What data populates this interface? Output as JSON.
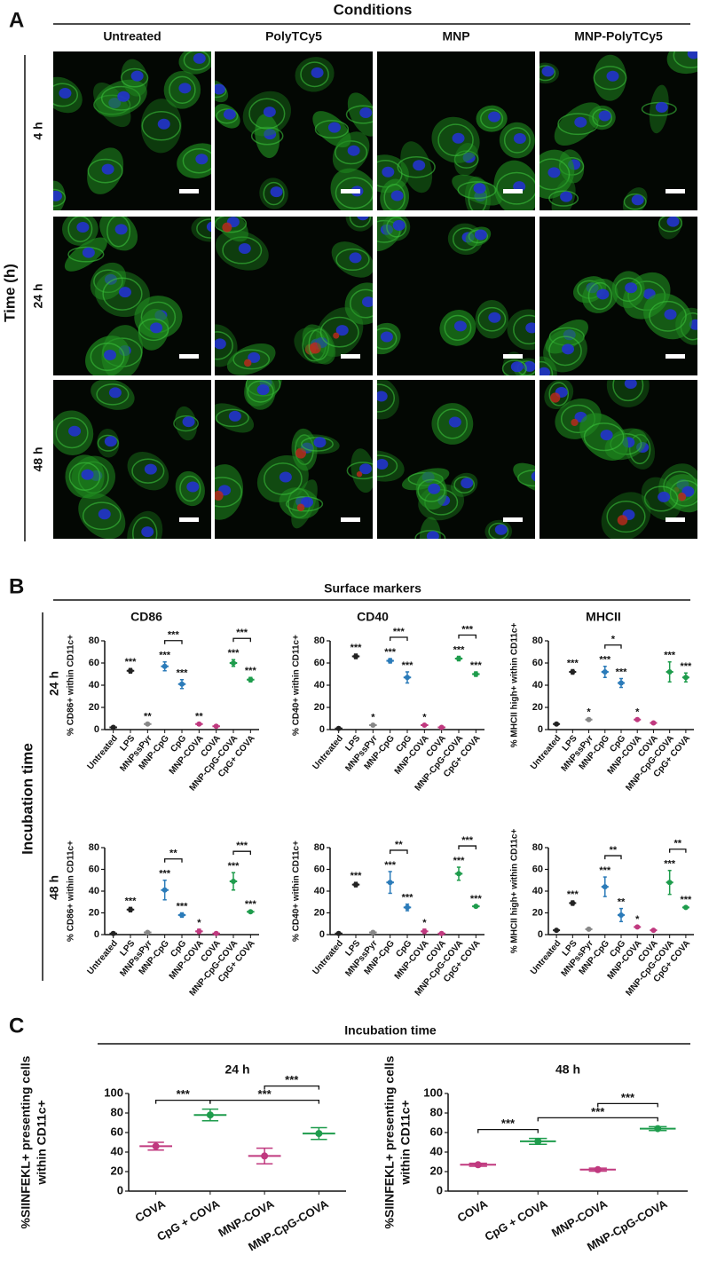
{
  "panel_a": {
    "label": "A",
    "title": "Conditions",
    "columns": [
      "Untreated",
      "PolyTCy5",
      "MNP",
      "MNP-PolyTCy5"
    ],
    "rows": [
      "4 h",
      "24 h",
      "48 h"
    ],
    "axis_label": "Time (h)"
  },
  "panel_b": {
    "label": "B",
    "title": "Surface markers",
    "row_axis_label": "Incubation time",
    "markers": [
      "CD86",
      "CD40",
      "MHCII"
    ],
    "rows": [
      "24 h",
      "48 h"
    ]
  },
  "panel_c": {
    "label": "C",
    "title": "Incubation time"
  },
  "chart_data": [
    {
      "type": "dot",
      "ylabel": [
        "% CD86+ within CD11c+"
      ],
      "categories": [
        "Untreated",
        "LPS",
        "MNPssPyr",
        "MNP-CpG",
        "CpG",
        "MNP-COVA",
        "COVA",
        "MNP-CpG-COVA",
        "CpG+ COVA"
      ],
      "values": [
        2,
        53,
        5,
        57,
        41,
        5,
        3,
        60,
        45
      ],
      "errors": [
        1,
        2,
        1,
        4,
        4,
        1,
        1,
        3,
        2
      ],
      "colors": [
        "#222222",
        "#222222",
        "#888888",
        "#2b7bb9",
        "#2b7bb9",
        "#c0397f",
        "#c0397f",
        "#1e9c4c",
        "#1e9c4c"
      ],
      "stars": [
        null,
        "***",
        "**",
        "***",
        "***",
        "**",
        null,
        "***",
        "***"
      ],
      "comparisons": [
        {
          "between": [
            "MNP-CpG",
            "CpG"
          ],
          "label": "***"
        },
        {
          "between": [
            "MNP-CpG-COVA",
            "CpG+ COVA"
          ],
          "label": "***"
        }
      ],
      "ylim": [
        0,
        80
      ],
      "yticks": [
        0,
        20,
        40,
        60,
        80
      ]
    },
    {
      "type": "dot",
      "ylabel": [
        "% CD40+ within CD11c+"
      ],
      "categories": [
        "Untreated",
        "LPS",
        "MNPssPyr",
        "MNP-CpG",
        "CpG",
        "MNP-COVA",
        "COVA",
        "MNP-CpG-COVA",
        "CpG+ COVA"
      ],
      "values": [
        1,
        66,
        4,
        62,
        47,
        4,
        2,
        64,
        50
      ],
      "errors": [
        1,
        2,
        1,
        2,
        5,
        1,
        1,
        2,
        2
      ],
      "colors": [
        "#222222",
        "#222222",
        "#888888",
        "#2b7bb9",
        "#2b7bb9",
        "#c0397f",
        "#c0397f",
        "#1e9c4c",
        "#1e9c4c"
      ],
      "stars": [
        null,
        "***",
        "*",
        "***",
        "***",
        "*",
        null,
        "***",
        "***"
      ],
      "comparisons": [
        {
          "between": [
            "MNP-CpG",
            "CpG"
          ],
          "label": "***"
        },
        {
          "between": [
            "MNP-CpG-COVA",
            "CpG+ COVA"
          ],
          "label": "***"
        }
      ],
      "ylim": [
        0,
        80
      ],
      "yticks": [
        0,
        20,
        40,
        60,
        80
      ]
    },
    {
      "type": "dot",
      "ylabel": [
        "% MHCII high+ within CD11c+"
      ],
      "categories": [
        "Untreated",
        "LPS",
        "MNPssPyr",
        "MNP-CpG",
        "CpG",
        "MNP-COVA",
        "COVA",
        "MNP-CpG-COVA",
        "CpG+ COVA"
      ],
      "values": [
        5,
        52,
        9,
        52,
        42,
        9,
        6,
        52,
        47
      ],
      "errors": [
        1,
        2,
        1,
        5,
        4,
        1,
        1,
        9,
        4
      ],
      "colors": [
        "#222222",
        "#222222",
        "#888888",
        "#2b7bb9",
        "#2b7bb9",
        "#c0397f",
        "#c0397f",
        "#1e9c4c",
        "#1e9c4c"
      ],
      "stars": [
        null,
        "***",
        "*",
        "***",
        "***",
        "*",
        null,
        "***",
        "***"
      ],
      "comparisons": [
        {
          "between": [
            "MNP-CpG",
            "CpG"
          ],
          "label": "*"
        }
      ],
      "ylim": [
        0,
        80
      ],
      "yticks": [
        0,
        20,
        40,
        60,
        80
      ]
    },
    {
      "type": "dot",
      "ylabel": [
        "% CD86+ within CD11c+"
      ],
      "categories": [
        "Untreated",
        "LPS",
        "MNPssPyr",
        "MNP-CpG",
        "CpG",
        "MNP-COVA",
        "COVA",
        "MNP-CpG-COVA",
        "CpG+ COVA"
      ],
      "values": [
        1,
        23,
        2,
        41,
        18,
        3,
        1,
        49,
        21
      ],
      "errors": [
        1,
        2,
        1,
        9,
        2,
        2,
        1,
        8,
        1
      ],
      "colors": [
        "#222222",
        "#222222",
        "#888888",
        "#2b7bb9",
        "#2b7bb9",
        "#c0397f",
        "#c0397f",
        "#1e9c4c",
        "#1e9c4c"
      ],
      "stars": [
        null,
        "***",
        null,
        "***",
        "***",
        "*",
        null,
        "***",
        "***"
      ],
      "comparisons": [
        {
          "between": [
            "MNP-CpG",
            "CpG"
          ],
          "label": "**"
        },
        {
          "between": [
            "MNP-CpG-COVA",
            "CpG+ COVA"
          ],
          "label": "***"
        }
      ],
      "ylim": [
        0,
        80
      ],
      "yticks": [
        0,
        20,
        40,
        60,
        80
      ]
    },
    {
      "type": "dot",
      "ylabel": [
        "% CD40+ within CD11c+"
      ],
      "categories": [
        "Untreated",
        "LPS",
        "MNPssPyr",
        "MNP-CpG",
        "CpG",
        "MNP-COVA",
        "COVA",
        "MNP-CpG-COVA",
        "CpG+ COVA"
      ],
      "values": [
        1,
        46,
        2,
        48,
        25,
        3,
        1,
        56,
        26
      ],
      "errors": [
        1,
        2,
        1,
        10,
        3,
        2,
        1,
        6,
        1
      ],
      "colors": [
        "#222222",
        "#222222",
        "#888888",
        "#2b7bb9",
        "#2b7bb9",
        "#c0397f",
        "#c0397f",
        "#1e9c4c",
        "#1e9c4c"
      ],
      "stars": [
        null,
        "***",
        null,
        "***",
        "***",
        "*",
        null,
        "***",
        "***"
      ],
      "comparisons": [
        {
          "between": [
            "MNP-CpG",
            "CpG"
          ],
          "label": "**"
        },
        {
          "between": [
            "MNP-CpG-COVA",
            "CpG+ COVA"
          ],
          "label": "***"
        }
      ],
      "ylim": [
        0,
        80
      ],
      "yticks": [
        0,
        20,
        40,
        60,
        80
      ]
    },
    {
      "type": "dot",
      "ylabel": [
        "% MHCII high+ within CD11c+"
      ],
      "categories": [
        "Untreated",
        "LPS",
        "MNPssPyr",
        "MNP-CpG",
        "CpG",
        "MNP-COVA",
        "COVA",
        "MNP-CpG-COVA",
        "CpG+ COVA"
      ],
      "values": [
        4,
        29,
        5,
        44,
        18,
        7,
        4,
        48,
        25
      ],
      "errors": [
        1,
        2,
        1,
        9,
        6,
        1,
        1,
        11,
        1
      ],
      "colors": [
        "#222222",
        "#222222",
        "#888888",
        "#2b7bb9",
        "#2b7bb9",
        "#c0397f",
        "#c0397f",
        "#1e9c4c",
        "#1e9c4c"
      ],
      "stars": [
        null,
        "***",
        null,
        "***",
        "**",
        "*",
        null,
        "***",
        "***"
      ],
      "comparisons": [
        {
          "between": [
            "MNP-CpG",
            "CpG"
          ],
          "label": "**"
        },
        {
          "between": [
            "MNP-CpG-COVA",
            "CpG+ COVA"
          ],
          "label": "**"
        }
      ],
      "ylim": [
        0,
        80
      ],
      "yticks": [
        0,
        20,
        40,
        60,
        80
      ]
    },
    {
      "type": "dot",
      "title": "24 h",
      "ylabel": [
        "%SIINFEKL+ presenting cells",
        "within CD11c+"
      ],
      "categories": [
        "COVA",
        "CpG + COVA",
        "MNP-COVA",
        "MNP-CpG-COVA"
      ],
      "values": [
        46,
        78,
        36,
        59
      ],
      "errors": [
        4,
        6,
        8,
        6
      ],
      "colors": [
        "#c0397f",
        "#1e9c4c",
        "#c0397f",
        "#1e9c4c"
      ],
      "comparisons": [
        {
          "between": [
            "COVA",
            "CpG + COVA"
          ],
          "label": "***"
        },
        {
          "between": [
            "CpG + COVA",
            "MNP-CpG-COVA"
          ],
          "label": "***"
        },
        {
          "between": [
            "MNP-COVA",
            "MNP-CpG-COVA"
          ],
          "label": "***"
        }
      ],
      "ylim": [
        0,
        100
      ],
      "yticks": [
        0,
        20,
        40,
        60,
        80,
        100
      ]
    },
    {
      "type": "dot",
      "title": "48 h",
      "ylabel": [
        "%SIINFEKL+ presenting cells",
        "within CD11c+"
      ],
      "categories": [
        "COVA",
        "CpG + COVA",
        "MNP-COVA",
        "MNP-CpG-COVA"
      ],
      "values": [
        27,
        51,
        22,
        64
      ],
      "errors": [
        1.5,
        3,
        1.5,
        2
      ],
      "colors": [
        "#c0397f",
        "#1e9c4c",
        "#c0397f",
        "#1e9c4c"
      ],
      "comparisons": [
        {
          "between": [
            "COVA",
            "CpG + COVA"
          ],
          "label": "***"
        },
        {
          "between": [
            "CpG + COVA",
            "MNP-CpG-COVA"
          ],
          "label": "***"
        },
        {
          "between": [
            "MNP-COVA",
            "MNP-CpG-COVA"
          ],
          "label": "***"
        }
      ],
      "ylim": [
        0,
        100
      ],
      "yticks": [
        0,
        20,
        40,
        60,
        80,
        100
      ]
    }
  ]
}
